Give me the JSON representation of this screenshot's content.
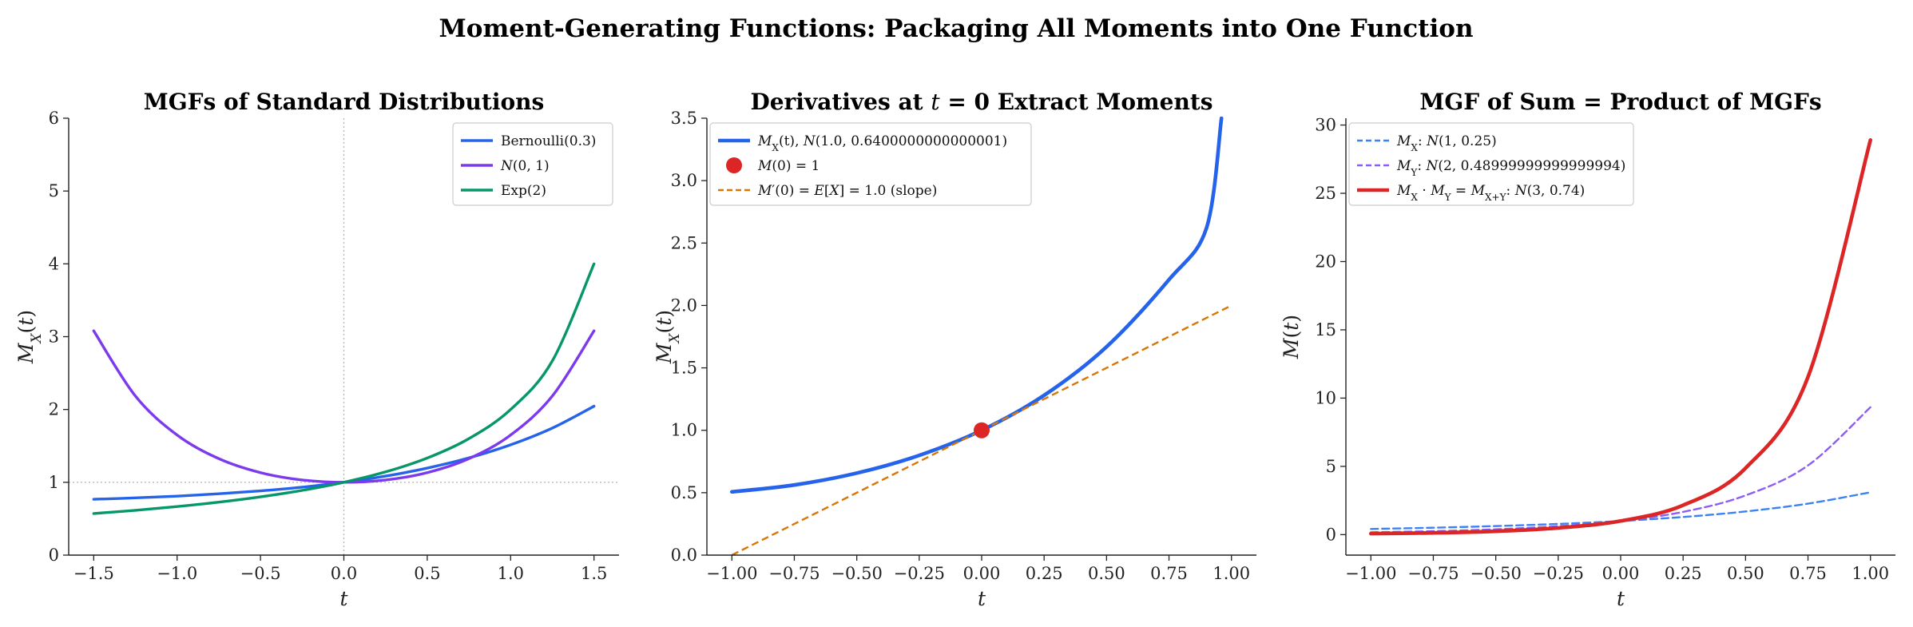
{
  "figure": {
    "title": "Moment-Generating Functions: Packaging All Moments into One Function"
  },
  "colors": {
    "blue": "#2563eb",
    "purple": "#7c3aed",
    "green": "#059669",
    "orange": "#d97706",
    "red": "#dc2626",
    "light_blue": "#3b82f6",
    "light_purple": "#8b5cf6",
    "ref_line": "#b8b8b8"
  },
  "chart_data": [
    {
      "type": "line",
      "title": "MGFs of Standard Distributions",
      "xlabel": "t",
      "ylabel": "M_X(t)",
      "xlim": [
        -1.65,
        1.65
      ],
      "ylim": [
        0,
        6
      ],
      "xticks": [
        -1.5,
        -1.0,
        -0.5,
        0.0,
        0.5,
        1.0,
        1.5
      ],
      "xtick_labels": [
        "−1.5",
        "−1.0",
        "−0.5",
        "0.0",
        "0.5",
        "1.0",
        "1.5"
      ],
      "yticks": [
        0,
        1,
        2,
        3,
        4,
        5,
        6
      ],
      "ytick_labels": [
        "0",
        "1",
        "2",
        "3",
        "4",
        "5",
        "6"
      ],
      "grid": false,
      "reference_lines": {
        "vertical_x": 0,
        "horizontal_y": 1
      },
      "legend_position": "top-right",
      "x": [
        -1.5,
        -1.25,
        -1.0,
        -0.75,
        -0.5,
        -0.25,
        0.0,
        0.25,
        0.5,
        0.75,
        1.0,
        1.25,
        1.5
      ],
      "series": [
        {
          "name": "Bernoulli(0.3)",
          "color": "#2563eb",
          "values": [
            0.767,
            0.786,
            0.81,
            0.842,
            0.882,
            0.933,
            1.0,
            1.085,
            1.195,
            1.335,
            1.515,
            1.745,
            2.045
          ]
        },
        {
          "name": "N(0, 1)",
          "color": "#7c3aed",
          "values": [
            3.08,
            2.185,
            1.649,
            1.325,
            1.133,
            1.032,
            1.0,
            1.032,
            1.133,
            1.325,
            1.649,
            2.185,
            3.08
          ]
        },
        {
          "name": "Exp(2)",
          "color": "#059669",
          "values": [
            0.571,
            0.615,
            0.667,
            0.727,
            0.8,
            0.889,
            1.0,
            1.143,
            1.333,
            1.6,
            2.0,
            2.667,
            4.0
          ]
        }
      ]
    },
    {
      "type": "line",
      "title": "Derivatives at t = 0 Extract Moments",
      "title_parts": [
        "Derivatives at ",
        "t",
        " = 0 Extract Moments"
      ],
      "xlabel": "t",
      "ylabel": "M_X(t)",
      "xlim": [
        -1.1,
        1.1
      ],
      "ylim": [
        0,
        3.5
      ],
      "xticks": [
        -1.0,
        -0.75,
        -0.5,
        -0.25,
        0.0,
        0.25,
        0.5,
        0.75,
        1.0
      ],
      "xtick_labels": [
        "−1.00",
        "−0.75",
        "−0.50",
        "−0.25",
        "0.00",
        "0.25",
        "0.50",
        "0.75",
        "1.00"
      ],
      "yticks": [
        0,
        0.5,
        1.0,
        1.5,
        2.0,
        2.5,
        3.0,
        3.5
      ],
      "ytick_labels": [
        "0.0",
        "0.5",
        "1.0",
        "1.5",
        "2.0",
        "2.5",
        "3.0",
        "3.5"
      ],
      "grid": false,
      "legend_position": "top-left",
      "x": [
        -1.0,
        -0.75,
        -0.5,
        -0.25,
        0.0,
        0.25,
        0.5,
        0.75,
        0.9,
        0.96
      ],
      "series": [
        {
          "name": "M_X(t), N(1.0, 0.6400000000000001)",
          "legend_parts": [
            "M",
            "X",
            "(t), ",
            "N",
            "(1.0, 0.6400000000000001)"
          ],
          "color": "#2563eb",
          "values": [
            0.507,
            0.562,
            0.657,
            0.799,
            1.0,
            1.28,
            1.669,
            2.207,
            2.62,
            3.5
          ]
        },
        {
          "name": "M′(0) = E[X] = 1.0 (slope)",
          "legend_parts": [
            "M",
            "′(0) = ",
            "E",
            "[",
            "X",
            "] = 1.0 (slope)"
          ],
          "color": "#d97706",
          "dashed": true,
          "x_line": [
            -1.0,
            1.0
          ],
          "values_line": [
            0.0,
            2.0
          ]
        }
      ],
      "points": [
        {
          "name": "M(0) = 1",
          "legend_parts": [
            "M",
            "(0) = 1"
          ],
          "x": 0.0,
          "y": 1.0,
          "color": "#dc2626"
        }
      ]
    },
    {
      "type": "line",
      "title": "MGF of Sum = Product of MGFs",
      "xlabel": "t",
      "ylabel": "M(t)",
      "xlim": [
        -1.1,
        1.1
      ],
      "ylim": [
        -1.5,
        30.5
      ],
      "xticks": [
        -1.0,
        -0.75,
        -0.5,
        -0.25,
        0.0,
        0.25,
        0.5,
        0.75,
        1.0
      ],
      "xtick_labels": [
        "−1.00",
        "−0.75",
        "−0.50",
        "−0.25",
        "0.00",
        "0.25",
        "0.50",
        "0.75",
        "1.00"
      ],
      "yticks": [
        0,
        5,
        10,
        15,
        20,
        25,
        30
      ],
      "ytick_labels": [
        "0",
        "5",
        "10",
        "15",
        "20",
        "25",
        "30"
      ],
      "grid": false,
      "legend_position": "top-left",
      "x": [
        -1.0,
        -0.75,
        -0.5,
        -0.25,
        0.0,
        0.25,
        0.5,
        0.75,
        1.0
      ],
      "series": [
        {
          "name": "M_X: N(1, 0.25)",
          "legend_parts": [
            "M",
            "X",
            ": ",
            "N",
            "(1, 0.25)"
          ],
          "color": "#3b82f6",
          "dashed": true,
          "values": [
            0.415,
            0.507,
            0.628,
            0.786,
            1.0,
            1.292,
            1.698,
            2.272,
            3.1
          ]
        },
        {
          "name": "M_Y: N(2, 0.48999999999999994)",
          "legend_parts": [
            "M",
            "Y",
            ": ",
            "N",
            "(2, 0.48999999999999994)"
          ],
          "color": "#8b5cf6",
          "dashed": true,
          "values": [
            0.173,
            0.255,
            0.391,
            0.623,
            1.0,
            1.666,
            2.87,
            5.07,
            9.33
          ]
        },
        {
          "name": "M_X · M_Y = M_X+Y: N(3, 0.74)",
          "legend_parts": [
            "M",
            "X",
            " · ",
            "M",
            "Y",
            " = ",
            "M",
            "X+Y",
            ": ",
            "N",
            "(3, 0.74)"
          ],
          "color": "#dc2626",
          "dashed": false,
          "values": [
            0.072,
            0.129,
            0.246,
            0.49,
            1.0,
            2.153,
            4.871,
            11.55,
            28.9
          ]
        }
      ]
    }
  ]
}
